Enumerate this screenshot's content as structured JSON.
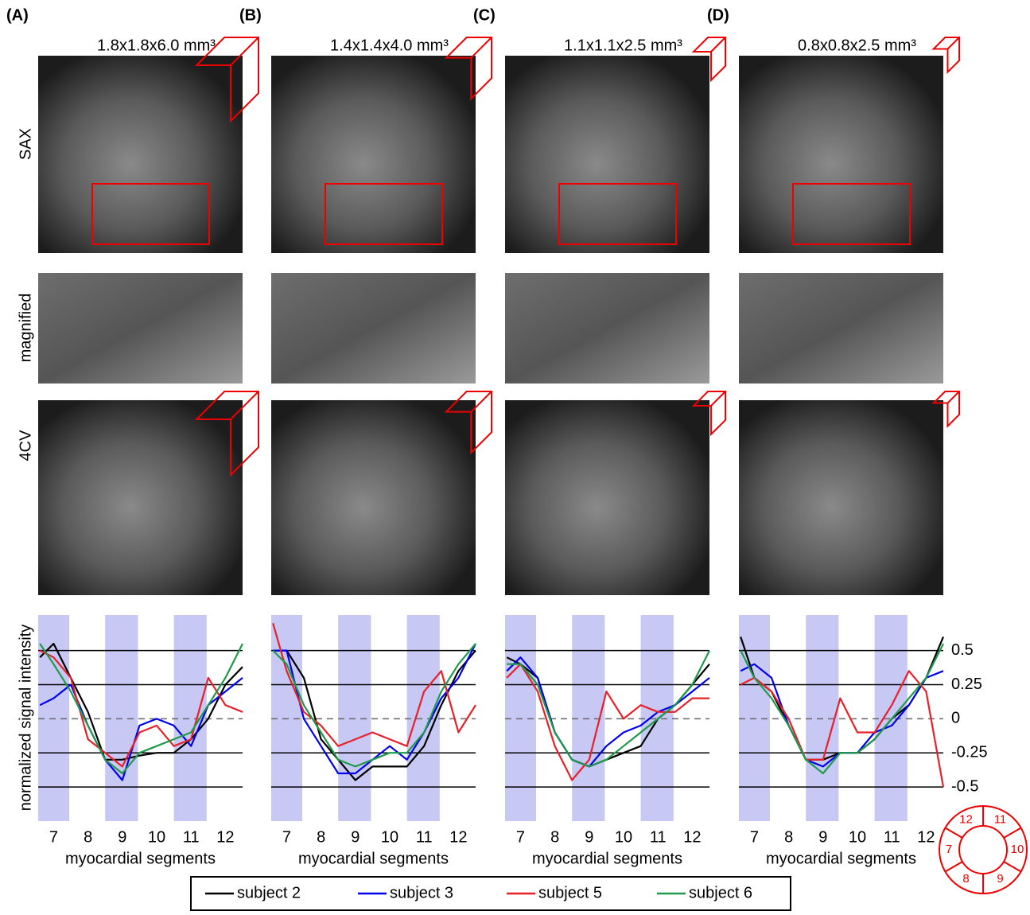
{
  "panels": [
    {
      "label": "(A)",
      "resolution": "1.8x1.8x6.0 mm³"
    },
    {
      "label": "(B)",
      "resolution": "1.4x1.4x4.0 mm³"
    },
    {
      "label": "(C)",
      "resolution": "1.1x1.1x2.5 mm³"
    },
    {
      "label": "(D)",
      "resolution": "0.8x0.8x2.5 mm³"
    }
  ],
  "row_labels": [
    "4CV",
    "magnified",
    "SAX"
  ],
  "chart_data": [
    {
      "type": "line",
      "ylabel": "normalized signal intensity",
      "xlabel": "myocardial segments",
      "x": [
        6.6,
        7,
        7.5,
        8,
        8.5,
        9,
        9.5,
        10,
        10.5,
        11,
        11.5,
        12,
        12.5
      ],
      "xlim": [
        6.55,
        12.5
      ],
      "xticks": [
        7,
        8,
        9,
        10,
        11,
        12
      ],
      "shaded_segments": [
        7,
        9,
        11
      ],
      "ylim": [
        -0.75,
        0.76
      ],
      "yticks": [
        0.5,
        0.25,
        0,
        -0.25,
        -0.5
      ],
      "show_ytick_labels": false,
      "grid": true,
      "series": [
        {
          "name": "subject 2",
          "color": "#000000",
          "values": [
            0.45,
            0.55,
            0.3,
            0.05,
            -0.3,
            -0.3,
            -0.27,
            -0.25,
            -0.25,
            -0.15,
            0.0,
            0.25,
            0.38
          ]
        },
        {
          "name": "subject 3",
          "color": "#0000ee",
          "values": [
            0.1,
            0.15,
            0.25,
            -0.05,
            -0.3,
            -0.45,
            -0.05,
            0.0,
            -0.05,
            -0.2,
            0.1,
            0.2,
            0.3
          ]
        },
        {
          "name": "subject 5",
          "color": "#e8202a",
          "values": [
            0.5,
            0.45,
            0.3,
            -0.15,
            -0.25,
            -0.35,
            -0.1,
            -0.05,
            -0.2,
            -0.15,
            0.3,
            0.1,
            0.05
          ]
        },
        {
          "name": "subject 6",
          "color": "#1f9a4a",
          "values": [
            0.55,
            0.4,
            0.2,
            -0.05,
            -0.3,
            -0.4,
            -0.25,
            -0.2,
            -0.15,
            -0.1,
            0.1,
            0.3,
            0.55
          ]
        }
      ]
    },
    {
      "type": "line",
      "xlabel": "myocardial segments",
      "x": [
        6.6,
        7,
        7.5,
        8,
        8.5,
        9,
        9.5,
        10,
        10.5,
        11,
        11.5,
        12,
        12.5
      ],
      "xlim": [
        6.55,
        12.5
      ],
      "xticks": [
        7,
        8,
        9,
        10,
        11,
        12
      ],
      "shaded_segments": [
        7,
        9,
        11
      ],
      "ylim": [
        -0.75,
        0.76
      ],
      "yticks": [
        0.5,
        0.25,
        0,
        -0.25,
        -0.5
      ],
      "show_ytick_labels": false,
      "grid": true,
      "series": [
        {
          "name": "subject 2",
          "color": "#000000",
          "values": [
            0.5,
            0.5,
            0.3,
            -0.15,
            -0.3,
            -0.45,
            -0.35,
            -0.35,
            -0.35,
            -0.2,
            0.1,
            0.35,
            0.5
          ]
        },
        {
          "name": "subject 3",
          "color": "#0000ee",
          "values": [
            0.5,
            0.5,
            0.0,
            -0.2,
            -0.4,
            -0.4,
            -0.3,
            -0.2,
            -0.3,
            -0.1,
            0.15,
            0.3,
            0.55
          ]
        },
        {
          "name": "subject 5",
          "color": "#e8202a",
          "values": [
            0.7,
            0.35,
            0.05,
            -0.05,
            -0.2,
            -0.15,
            -0.1,
            -0.15,
            -0.2,
            0.2,
            0.35,
            -0.1,
            0.1
          ]
        },
        {
          "name": "subject 6",
          "color": "#1f9a4a",
          "values": [
            0.5,
            0.4,
            0.1,
            -0.1,
            -0.3,
            -0.35,
            -0.3,
            -0.25,
            -0.25,
            -0.1,
            0.2,
            0.4,
            0.55
          ]
        }
      ]
    },
    {
      "type": "line",
      "xlabel": "myocardial segments",
      "x": [
        6.6,
        7,
        7.5,
        8,
        8.5,
        9,
        9.5,
        10,
        10.5,
        11,
        11.5,
        12,
        12.5
      ],
      "xlim": [
        6.55,
        12.5
      ],
      "xticks": [
        7,
        8,
        9,
        10,
        11,
        12
      ],
      "shaded_segments": [
        7,
        9,
        11
      ],
      "ylim": [
        -0.75,
        0.76
      ],
      "yticks": [
        0.5,
        0.25,
        0,
        -0.25,
        -0.5
      ],
      "show_ytick_labels": false,
      "grid": true,
      "series": [
        {
          "name": "subject 2",
          "color": "#000000",
          "values": [
            0.45,
            0.4,
            0.3,
            -0.1,
            -0.3,
            -0.35,
            -0.3,
            -0.25,
            -0.2,
            0.0,
            0.1,
            0.25,
            0.4
          ]
        },
        {
          "name": "subject 3",
          "color": "#0000ee",
          "values": [
            0.35,
            0.45,
            0.3,
            -0.1,
            -0.3,
            -0.35,
            -0.2,
            -0.1,
            -0.05,
            0.05,
            0.1,
            0.2,
            0.3
          ]
        },
        {
          "name": "subject 5",
          "color": "#e8202a",
          "values": [
            0.3,
            0.4,
            0.2,
            -0.2,
            -0.45,
            -0.3,
            0.2,
            0.0,
            0.1,
            0.05,
            0.05,
            0.15,
            0.15
          ]
        },
        {
          "name": "subject 6",
          "color": "#1f9a4a",
          "values": [
            0.4,
            0.4,
            0.25,
            -0.1,
            -0.3,
            -0.35,
            -0.3,
            -0.2,
            -0.1,
            0.0,
            0.1,
            0.25,
            0.5
          ]
        }
      ]
    },
    {
      "type": "line",
      "xlabel": "myocardial segments",
      "x": [
        6.6,
        7,
        7.5,
        8,
        8.5,
        9,
        9.5,
        10,
        10.5,
        11,
        11.5,
        12,
        12.5
      ],
      "xlim": [
        6.55,
        12.5
      ],
      "xticks": [
        7,
        8,
        9,
        10,
        11,
        12
      ],
      "shaded_segments": [
        7,
        9,
        11
      ],
      "ylim": [
        -0.75,
        0.76
      ],
      "yticks": [
        0.5,
        0.25,
        0,
        -0.25,
        -0.5
      ],
      "show_ytick_labels": true,
      "grid": true,
      "series": [
        {
          "name": "subject 2",
          "color": "#000000",
          "values": [
            0.6,
            0.3,
            0.2,
            -0.05,
            -0.3,
            -0.3,
            -0.25,
            -0.25,
            -0.15,
            0.0,
            0.1,
            0.3,
            0.6
          ]
        },
        {
          "name": "subject 3",
          "color": "#0000ee",
          "values": [
            0.35,
            0.4,
            0.3,
            -0.05,
            -0.3,
            -0.35,
            -0.25,
            -0.25,
            -0.1,
            -0.05,
            0.1,
            0.3,
            0.35
          ]
        },
        {
          "name": "subject 5",
          "color": "#e8202a",
          "values": [
            0.25,
            0.3,
            0.2,
            0.0,
            -0.3,
            -0.3,
            0.15,
            -0.1,
            -0.1,
            0.1,
            0.35,
            0.2,
            -0.5
          ]
        },
        {
          "name": "subject 6",
          "color": "#1f9a4a",
          "values": [
            0.5,
            0.3,
            0.15,
            -0.05,
            -0.3,
            -0.4,
            -0.25,
            -0.25,
            -0.15,
            0.0,
            0.15,
            0.3,
            0.55
          ]
        }
      ]
    }
  ]
}
